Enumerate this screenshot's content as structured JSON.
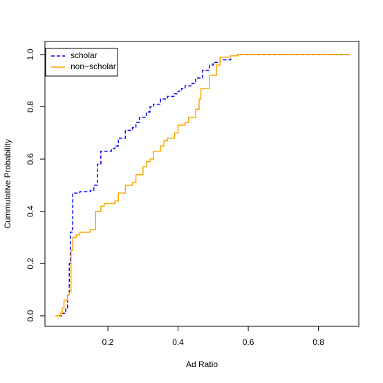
{
  "chart_data": {
    "type": "step",
    "x_label": "Ad Ratio",
    "y_label": "Cummulative Probability",
    "xlim": [
      0.0207,
      0.915
    ],
    "ylim": [
      -0.04,
      1.05
    ],
    "xticks": [
      0.2,
      0.4,
      0.6,
      0.8
    ],
    "yticks": [
      {
        "value": 0,
        "label": "0.0"
      },
      {
        "value": 0.2,
        "label": "0.2"
      },
      {
        "value": 0.4,
        "label": "0.4"
      },
      {
        "value": 0.6,
        "label": "0.6"
      },
      {
        "value": 0.8,
        "label": "0.8"
      },
      {
        "value": 1,
        "label": "1.0"
      }
    ],
    "legend": "top-left",
    "series": [
      {
        "name": "scholar",
        "color": "#0000ff",
        "dashed": true,
        "x": [
          0.06,
          0.07,
          0.08,
          0.085,
          0.09,
          0.093,
          0.098,
          0.1,
          0.12,
          0.15,
          0.16,
          0.17,
          0.18,
          0.21,
          0.22,
          0.23,
          0.25,
          0.27,
          0.28,
          0.29,
          0.31,
          0.32,
          0.33,
          0.35,
          0.37,
          0.39,
          0.4,
          0.41,
          0.42,
          0.44,
          0.45,
          0.47,
          0.49,
          0.5,
          0.52,
          0.55,
          0.57,
          0.89
        ],
        "values": [
          0,
          0.01,
          0.03,
          0.08,
          0.2,
          0.32,
          0.33,
          0.47,
          0.475,
          0.48,
          0.5,
          0.58,
          0.63,
          0.64,
          0.65,
          0.68,
          0.71,
          0.72,
          0.74,
          0.76,
          0.78,
          0.8,
          0.81,
          0.83,
          0.84,
          0.85,
          0.86,
          0.87,
          0.88,
          0.89,
          0.91,
          0.94,
          0.96,
          0.97,
          0.98,
          0.995,
          1,
          1
        ]
      },
      {
        "name": "non−scholar",
        "color": "#ffa500",
        "dashed": false,
        "x": [
          0.05,
          0.065,
          0.07,
          0.075,
          0.085,
          0.09,
          0.095,
          0.1,
          0.11,
          0.12,
          0.15,
          0.165,
          0.18,
          0.19,
          0.22,
          0.23,
          0.25,
          0.27,
          0.28,
          0.3,
          0.31,
          0.32,
          0.33,
          0.35,
          0.36,
          0.37,
          0.39,
          0.4,
          0.42,
          0.43,
          0.45,
          0.46,
          0.465,
          0.48,
          0.49,
          0.51,
          0.52,
          0.55,
          0.57,
          0.89
        ],
        "values": [
          0,
          0.01,
          0.03,
          0.06,
          0.08,
          0.09,
          0.25,
          0.3,
          0.31,
          0.32,
          0.33,
          0.4,
          0.42,
          0.43,
          0.44,
          0.47,
          0.5,
          0.51,
          0.54,
          0.57,
          0.59,
          0.6,
          0.63,
          0.65,
          0.67,
          0.68,
          0.7,
          0.73,
          0.74,
          0.76,
          0.79,
          0.83,
          0.87,
          0.87,
          0.92,
          0.96,
          0.99,
          0.995,
          1,
          1
        ]
      }
    ]
  }
}
